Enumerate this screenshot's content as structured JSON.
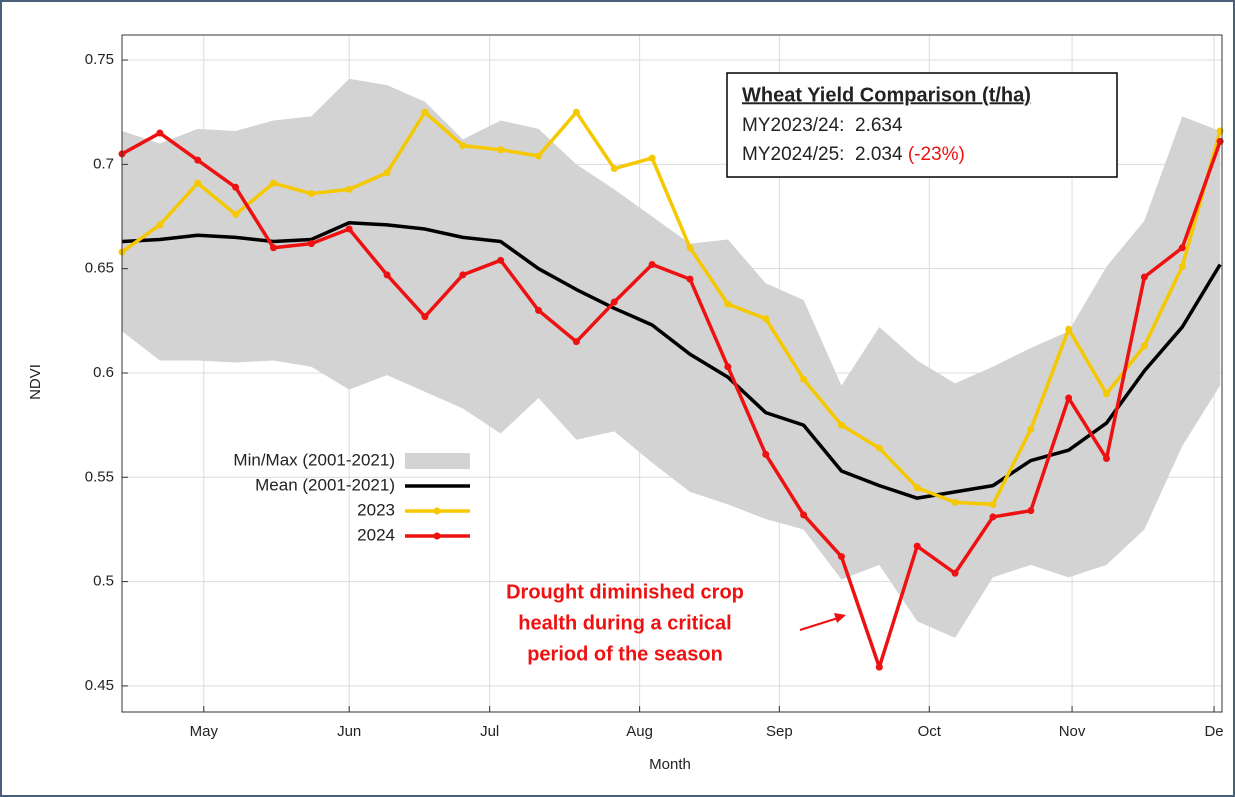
{
  "chart_data": {
    "type": "line",
    "y_label": "NDVI",
    "x_label": "Month",
    "x": [
      0,
      1,
      2,
      3,
      4,
      5,
      6,
      7,
      8,
      9,
      10,
      11,
      12,
      13,
      14,
      15,
      16,
      17,
      18,
      19,
      20,
      21,
      22,
      23,
      24,
      25,
      26,
      27,
      28,
      29
    ],
    "xlim": [
      0,
      29.05
    ],
    "xticks": [
      {
        "value": 2.16,
        "label": "May"
      },
      {
        "value": 6.0,
        "label": "Jun"
      },
      {
        "value": 9.71,
        "label": "Jul"
      },
      {
        "value": 13.67,
        "label": "Aug"
      },
      {
        "value": 17.36,
        "label": "Sep"
      },
      {
        "value": 21.32,
        "label": "Oct"
      },
      {
        "value": 25.09,
        "label": "Nov"
      },
      {
        "value": 28.84,
        "label": "De"
      }
    ],
    "ylim": [
      0.4375,
      0.762
    ],
    "yticks": [
      0.45,
      0.5,
      0.55,
      0.6,
      0.65,
      0.7,
      0.75
    ],
    "grid": true,
    "band": {
      "name": "Min/Max (2001-2021)",
      "color": "#d3d3d3",
      "upper": [
        0.716,
        0.71,
        0.717,
        0.716,
        0.721,
        0.723,
        0.741,
        0.738,
        0.73,
        0.712,
        0.721,
        0.717,
        0.7,
        0.688,
        0.675,
        0.662,
        0.664,
        0.643,
        0.635,
        0.594,
        0.622,
        0.606,
        0.595,
        0.603,
        0.612,
        0.62,
        0.651,
        0.673,
        0.723,
        0.716
      ],
      "lower": [
        0.62,
        0.606,
        0.606,
        0.605,
        0.606,
        0.603,
        0.592,
        0.599,
        0.591,
        0.583,
        0.571,
        0.588,
        0.568,
        0.572,
        0.557,
        0.543,
        0.537,
        0.53,
        0.525,
        0.501,
        0.508,
        0.481,
        0.473,
        0.502,
        0.508,
        0.502,
        0.508,
        0.525,
        0.565,
        0.594
      ]
    },
    "series": [
      {
        "name": "Mean (2001-2021)",
        "color": "#000000",
        "markers": false,
        "values": [
          0.663,
          0.664,
          0.666,
          0.665,
          0.663,
          0.664,
          0.672,
          0.671,
          0.669,
          0.665,
          0.663,
          0.65,
          0.64,
          0.631,
          0.623,
          0.609,
          0.598,
          0.581,
          0.575,
          0.553,
          0.546,
          0.54,
          0.543,
          0.546,
          0.558,
          0.563,
          0.576,
          0.601,
          0.622,
          0.652
        ]
      },
      {
        "name": "2023",
        "color": "#f5c800",
        "markers": true,
        "values": [
          0.658,
          0.671,
          0.691,
          0.676,
          0.691,
          0.686,
          0.688,
          0.696,
          0.725,
          0.709,
          0.707,
          0.704,
          0.725,
          0.698,
          0.703,
          0.66,
          0.633,
          0.626,
          0.597,
          0.575,
          0.564,
          0.545,
          0.538,
          0.537,
          0.573,
          0.621,
          0.59,
          0.613,
          0.651,
          0.716
        ]
      },
      {
        "name": "2024",
        "color": "#ee1111",
        "markers": true,
        "values": [
          0.705,
          0.715,
          0.702,
          0.689,
          0.66,
          0.662,
          0.669,
          0.647,
          0.627,
          0.647,
          0.654,
          0.63,
          0.615,
          0.634,
          0.652,
          0.645,
          0.603,
          0.561,
          0.532,
          0.512,
          0.459,
          0.517,
          0.504,
          0.531,
          0.534,
          0.588,
          0.559,
          0.646,
          0.66,
          0.711
        ]
      }
    ],
    "yield_box": {
      "title": "Wheat Yield Comparison (t/ha)",
      "line1": "MY2023/24:  2.634",
      "line2": "MY2024/25:  2.034",
      "change": "(-23%)"
    },
    "annotation": [
      "Drought diminished crop",
      "health during a critical",
      "period of the season"
    ]
  }
}
